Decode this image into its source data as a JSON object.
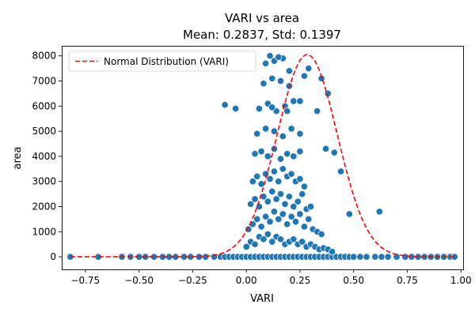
{
  "chart_data": {
    "type": "scatter",
    "title": "VARI vs area",
    "subtitle": "Mean: 0.2837, Std: 0.1397",
    "xlabel": "VARI",
    "ylabel": "area",
    "xlim": [
      -0.86,
      1.01
    ],
    "ylim": [
      -500,
      8400
    ],
    "xticks": [
      -0.75,
      -0.5,
      -0.25,
      0.0,
      0.25,
      0.5,
      0.75,
      1.0
    ],
    "xtick_labels": [
      "−0.75",
      "−0.50",
      "−0.25",
      "0.00",
      "0.25",
      "0.50",
      "0.75",
      "1.00"
    ],
    "yticks": [
      0,
      1000,
      2000,
      3000,
      4000,
      5000,
      6000,
      7000,
      8000
    ],
    "ytick_labels": [
      "0",
      "1000",
      "2000",
      "3000",
      "4000",
      "5000",
      "6000",
      "7000",
      "8000"
    ],
    "grid": false,
    "legend_position": "top-left",
    "colors": {
      "points": "#1f77b4",
      "normal_curve": "#ff0000"
    },
    "normal_curve": {
      "name": "Normal Distribution (VARI)",
      "mean": 0.2837,
      "std": 0.1397,
      "peak": 8050,
      "style": "dashed"
    },
    "series": [
      {
        "x": [
          -0.82,
          -0.69,
          -0.58,
          -0.54,
          -0.5,
          -0.47,
          -0.43,
          -0.39,
          -0.36,
          -0.33,
          -0.29,
          -0.26,
          -0.22,
          -0.19,
          -0.15,
          -0.12,
          -0.1,
          -0.08,
          -0.06,
          -0.04,
          -0.02,
          0.0,
          0.02,
          0.04,
          0.06,
          0.08,
          0.1,
          0.12,
          0.14,
          0.16,
          0.18,
          0.2,
          0.22,
          0.24,
          0.26,
          0.28,
          0.3,
          0.32,
          0.34,
          0.36,
          0.38,
          0.4,
          0.42,
          0.44,
          0.46,
          0.48,
          0.5,
          0.53,
          0.56,
          0.6,
          0.63,
          0.66,
          0.7,
          0.74,
          0.77,
          0.8,
          0.83,
          0.86,
          0.89,
          0.92,
          0.95,
          0.97,
          0.0,
          0.02,
          0.04,
          0.06,
          0.08,
          0.1,
          0.12,
          0.14,
          0.16,
          0.18,
          0.2,
          0.22,
          0.24,
          0.26,
          0.28,
          0.3,
          0.32,
          0.34,
          0.36,
          0.38,
          0.4,
          0.01,
          0.03,
          0.05,
          0.07,
          0.09,
          0.11,
          0.13,
          0.15,
          0.17,
          0.19,
          0.21,
          0.23,
          0.25,
          0.27,
          0.29,
          0.31,
          0.33,
          0.35,
          0.02,
          0.04,
          0.06,
          0.08,
          0.1,
          0.12,
          0.14,
          0.16,
          0.18,
          0.2,
          0.22,
          0.24,
          0.26,
          0.28,
          0.3,
          0.03,
          0.05,
          0.07,
          0.09,
          0.11,
          0.13,
          0.15,
          0.17,
          0.19,
          0.21,
          0.23,
          0.25,
          0.27,
          0.04,
          0.07,
          0.1,
          0.13,
          0.16,
          0.19,
          0.22,
          0.25,
          0.05,
          0.09,
          0.13,
          0.17,
          0.21,
          0.25,
          0.06,
          0.1,
          0.14,
          0.18,
          0.22,
          0.08,
          0.12,
          0.16,
          0.2,
          0.09,
          0.13,
          0.17,
          0.11,
          0.15,
          -0.1,
          -0.05,
          0.35,
          0.38,
          0.41,
          0.44,
          0.48,
          0.62,
          0.29,
          0.33,
          0.37,
          0.2,
          0.27,
          0.19,
          0.12,
          0.25
        ],
        "y": [
          0,
          0,
          0,
          0,
          0,
          0,
          0,
          0,
          0,
          0,
          0,
          0,
          0,
          0,
          0,
          0,
          0,
          0,
          0,
          0,
          0,
          0,
          0,
          0,
          0,
          0,
          0,
          0,
          0,
          0,
          0,
          0,
          0,
          0,
          0,
          0,
          0,
          0,
          0,
          0,
          0,
          0,
          0,
          0,
          0,
          0,
          0,
          0,
          0,
          0,
          0,
          0,
          0,
          0,
          0,
          0,
          0,
          0,
          0,
          0,
          0,
          0,
          400,
          600,
          500,
          800,
          700,
          900,
          600,
          800,
          700,
          500,
          600,
          700,
          500,
          600,
          400,
          500,
          400,
          300,
          350,
          300,
          200,
          1100,
          1300,
          1500,
          1200,
          1600,
          1400,
          1800,
          1500,
          1700,
          1300,
          1600,
          1400,
          1700,
          1200,
          1500,
          1100,
          1000,
          900,
          2100,
          2300,
          2000,
          2400,
          2200,
          2600,
          2300,
          2500,
          2100,
          2400,
          2000,
          2200,
          2500,
          1900,
          2000,
          3000,
          3200,
          2900,
          3300,
          3100,
          3400,
          3000,
          3500,
          3200,
          3300,
          3000,
          3100,
          2800,
          4100,
          4200,
          4000,
          4300,
          3900,
          4100,
          4000,
          4200,
          4900,
          5100,
          5000,
          4800,
          5100,
          4900,
          5900,
          6100,
          5800,
          6000,
          6200,
          6900,
          7100,
          7000,
          6800,
          7700,
          7800,
          7900,
          8000,
          7950,
          6050,
          5900,
          7100,
          6500,
          4150,
          3400,
          1700,
          1800,
          7500,
          5800,
          4300,
          7400,
          7200,
          5800,
          5950,
          6200
        ]
      }
    ]
  }
}
